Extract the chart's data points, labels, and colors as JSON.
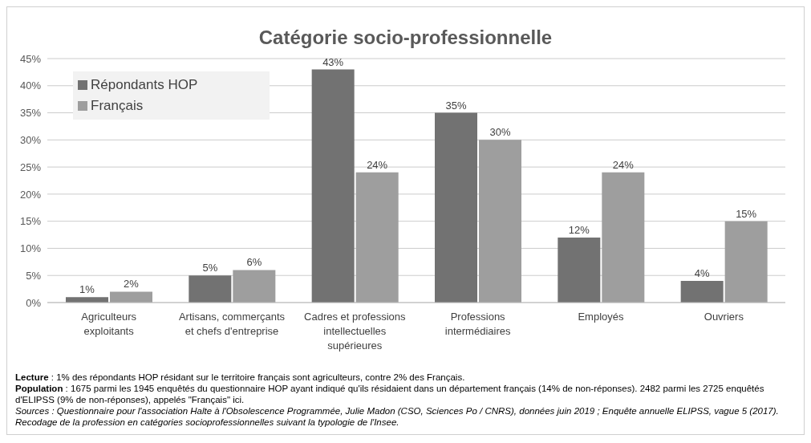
{
  "chart_data": {
    "type": "bar",
    "title": "Catégorie socio-professionnelle",
    "categories": [
      "Agriculteurs exploitants",
      "Artisans, commerçants et chefs d'entreprise",
      "Cadres et professions intellectuelles supérieures",
      "Professions intermédiaires",
      "Employés",
      "Ouvriers"
    ],
    "series": [
      {
        "name": "Répondants HOP",
        "color": "#727272",
        "values": [
          1,
          5,
          43,
          35,
          12,
          4
        ],
        "value_labels": [
          "1%",
          "5%",
          "43%",
          "35%",
          "12%",
          "4%"
        ]
      },
      {
        "name": "Français",
        "color": "#9e9e9e",
        "values": [
          2,
          6,
          24,
          30,
          24,
          15
        ],
        "value_labels": [
          "2%",
          "6%",
          "24%",
          "30%",
          "24%",
          "15%"
        ]
      }
    ],
    "ylim": [
      0,
      45
    ],
    "yticks": [
      {
        "value": 0,
        "label": "0%"
      },
      {
        "value": 5,
        "label": "5%"
      },
      {
        "value": 10,
        "label": "10%"
      },
      {
        "value": 15,
        "label": "15%"
      },
      {
        "value": 20,
        "label": "20%"
      },
      {
        "value": 25,
        "label": "25%"
      },
      {
        "value": 30,
        "label": "30%"
      },
      {
        "value": 35,
        "label": "35%"
      },
      {
        "value": 40,
        "label": "40%"
      },
      {
        "value": 45,
        "label": "45%"
      }
    ],
    "grid": "y",
    "legend": "top left",
    "annotations": [
      "Lecture : 1% des répondants HOP résidant sur le territoire français sont agriculteurs, contre 2% des Français.",
      "Population : 1675 parmi les 1945 enquêtés du questionnaire HOP ayant indiqué qu'ils résidaient dans un département français (14% de non-réponses). 2482 parmi les 2725 enquêtés d'ELIPSS (9% de non-réponses), appelés \"Français\" ici.",
      "Sources : Questionnaire pour l'association Halte à l'Obsolescence Programmée, Julie Madon (CSO, Sciences Po / CNRS), données juin 2019 ; Enquête annuelle ELIPSS, vague 5 (2017). Recodage de la profession en catégories socioprofessionnelles suivant la typologie de l'Insee."
    ]
  }
}
